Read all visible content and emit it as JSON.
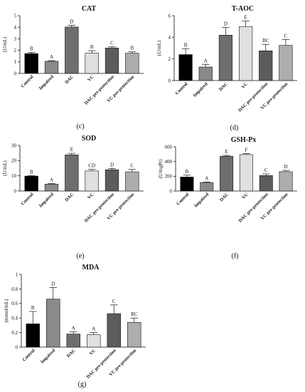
{
  "chart_data": [
    {
      "type": "bar",
      "title": "CAT",
      "panel_label": "(c)",
      "ylabel": "(U/mL)",
      "ylim": [
        0,
        5
      ],
      "yticks": [
        0,
        1,
        2,
        3,
        4,
        5
      ],
      "categories": [
        "Control",
        "Impaired",
        "DAC",
        "VC",
        "DAC pre-protection",
        "VC pre-protection"
      ],
      "values": [
        1.72,
        1.05,
        4.02,
        1.75,
        2.2,
        1.75
      ],
      "errors": [
        0.1,
        0.06,
        0.15,
        0.22,
        0.1,
        0.12
      ],
      "letters": [
        "B",
        "A",
        "D",
        "B",
        "C",
        "B"
      ],
      "colors": [
        "#000000",
        "#8a8a8a",
        "#6e6e6e",
        "#e0e0e0",
        "#5c5c5c",
        "#adadad"
      ]
    },
    {
      "type": "bar",
      "title": "T-AOC",
      "panel_label": "(d)",
      "ylabel": "(U/mL)",
      "ylim": [
        0,
        6
      ],
      "yticks": [
        0,
        2,
        4,
        6
      ],
      "categories": [
        "Control",
        "Impaired",
        "DAC",
        "VC",
        "DAC pre-protection",
        "VC pre-protection"
      ],
      "values": [
        2.4,
        1.25,
        4.2,
        5.0,
        2.75,
        3.25
      ],
      "errors": [
        0.55,
        0.25,
        0.7,
        0.5,
        0.6,
        0.55
      ],
      "letters": [
        "B",
        "A",
        "D",
        "E",
        "BC",
        "C"
      ],
      "colors": [
        "#000000",
        "#8a8a8a",
        "#6e6e6e",
        "#e0e0e0",
        "#5c5c5c",
        "#adadad"
      ]
    },
    {
      "type": "bar",
      "title": "SOD",
      "panel_label": "(e)",
      "ylabel": "(U/mL)",
      "ylim": [
        0,
        30
      ],
      "yticks": [
        0,
        10,
        20,
        30
      ],
      "categories": [
        "Control",
        "Impaired",
        "DAC",
        "VC",
        "DAC pre-protection",
        "VC pre-protection"
      ],
      "values": [
        9.8,
        4.5,
        23.8,
        13.2,
        14.0,
        12.6
      ],
      "errors": [
        0.3,
        0.4,
        1.0,
        1.0,
        0.8,
        1.6
      ],
      "letters": [
        "B",
        "A",
        "E",
        "CD",
        "D",
        "C"
      ],
      "colors": [
        "#000000",
        "#8a8a8a",
        "#6e6e6e",
        "#e0e0e0",
        "#5c5c5c",
        "#adadad"
      ]
    },
    {
      "type": "bar",
      "title": "GSH-Px",
      "panel_label": "(f)",
      "ylabel": "(U/mgPr)",
      "ylim": [
        0,
        600
      ],
      "yticks": [
        0,
        200,
        400,
        600
      ],
      "categories": [
        "Control",
        "Impaired",
        "DAC",
        "VC",
        "DAC pre-protection",
        "VC pre-protection"
      ],
      "values": [
        190,
        115,
        472,
        495,
        210,
        262
      ],
      "errors": [
        25,
        8,
        12,
        12,
        22,
        18
      ],
      "letters": [
        "B",
        "A",
        "E",
        "F",
        "C",
        "D"
      ],
      "colors": [
        "#000000",
        "#8a8a8a",
        "#6e6e6e",
        "#e0e0e0",
        "#5c5c5c",
        "#adadad"
      ]
    },
    {
      "type": "bar",
      "title": "MDA",
      "panel_label": "(g)",
      "ylabel": "(mmol/mL)",
      "ylim": [
        0,
        1.0
      ],
      "yticks": [
        0,
        0.2,
        0.4,
        0.6,
        0.8,
        1.0
      ],
      "categories": [
        "Control",
        "Impaired",
        "DAC",
        "VC",
        "DAC pre-protection",
        "VC pre-protection"
      ],
      "values": [
        0.32,
        0.66,
        0.18,
        0.17,
        0.46,
        0.34
      ],
      "errors": [
        0.17,
        0.16,
        0.03,
        0.03,
        0.12,
        0.06
      ],
      "letters": [
        "B",
        "D",
        "A",
        "A",
        "C",
        "BC"
      ],
      "colors": [
        "#000000",
        "#8a8a8a",
        "#6e6e6e",
        "#e0e0e0",
        "#5c5c5c",
        "#adadad"
      ]
    }
  ]
}
